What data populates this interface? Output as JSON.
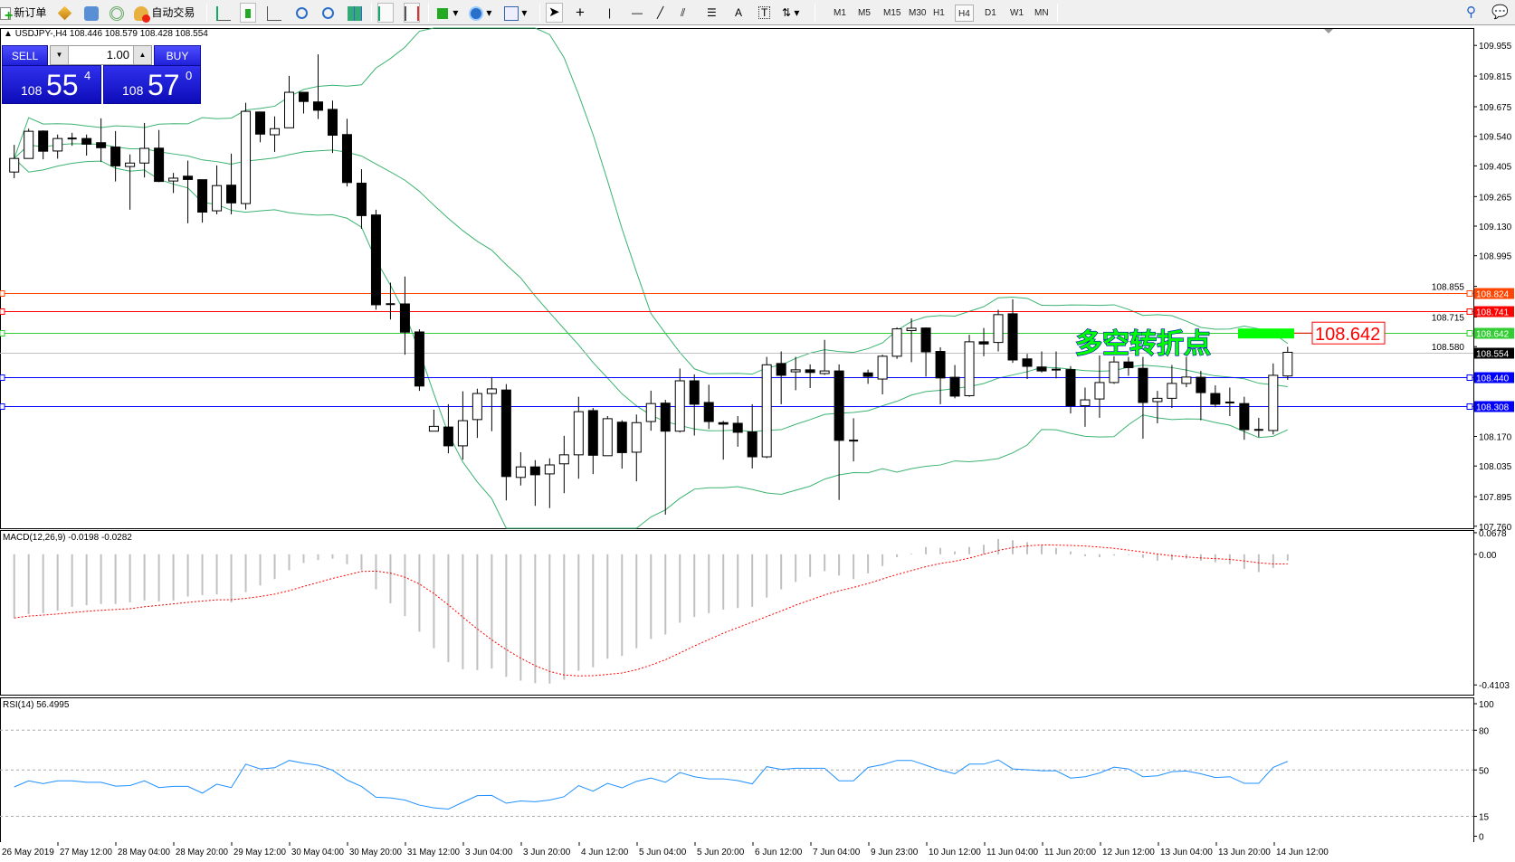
{
  "toolbar": {
    "new_order": "新订单",
    "auto_trading": "自动交易",
    "timeframes": [
      "M1",
      "M5",
      "M15",
      "M30",
      "H1",
      "H4",
      "D1",
      "W1",
      "MN"
    ],
    "active_timeframe": "H4",
    "text_tool": "A",
    "label_tool": "T"
  },
  "chart": {
    "header": "USDJPY-,H4  108.446 108.579 108.428 108.554",
    "symbol": "USDJPY-",
    "timeframe": "H4"
  },
  "trade_panel": {
    "sell_label": "SELL",
    "buy_label": "BUY",
    "lot": "1.00",
    "sell_price": {
      "prefix": "108",
      "big": "55",
      "sup": "4"
    },
    "buy_price": {
      "prefix": "108",
      "big": "57",
      "sup": "0"
    }
  },
  "annotation": {
    "text": "多空转折点",
    "price_label": "108.642",
    "text_color": "#00ff00",
    "box_color": "#ff0000"
  },
  "chart_data": [
    {
      "type": "candlestick",
      "panel": "main",
      "ylim": [
        107.76,
        109.995
      ],
      "y_ticks": [
        "109.955",
        "109.815",
        "109.675",
        "109.540",
        "109.405",
        "109.265",
        "109.130",
        "108.995",
        "108.855",
        "108.715",
        "108.580",
        "108.170",
        "108.035",
        "107.895",
        "107.760"
      ],
      "x_tick_labels": [
        "26 May 2019",
        "27 May 12:00",
        "28 May 04:00",
        "28 May 20:00",
        "29 May 12:00",
        "30 May 04:00",
        "30 May 20:00",
        "31 May 12:00",
        "3 Jun 04:00",
        "3 Jun 20:00",
        "4 Jun 12:00",
        "5 Jun 04:00",
        "5 Jun 20:00",
        "6 Jun 12:00",
        "7 Jun 04:00",
        "9 Jun 23:00",
        "10 Jun 12:00",
        "11 Jun 04:00",
        "11 Jun 20:00",
        "12 Jun 12:00",
        "13 Jun 04:00",
        "13 Jun 20:00",
        "14 Jun 12:00"
      ],
      "ohlc": [
        [
          109.377,
          109.501,
          109.349,
          109.439
        ],
        [
          109.439,
          109.575,
          109.439,
          109.563
        ],
        [
          109.564,
          109.567,
          109.435,
          109.472
        ],
        [
          109.473,
          109.548,
          109.438,
          109.53
        ],
        [
          109.53,
          109.556,
          109.497,
          109.528
        ],
        [
          109.53,
          109.548,
          109.452,
          109.504
        ],
        [
          109.511,
          109.622,
          109.423,
          109.488
        ],
        [
          109.491,
          109.564,
          109.334,
          109.405
        ],
        [
          109.402,
          109.457,
          109.205,
          109.418
        ],
        [
          109.418,
          109.601,
          109.352,
          109.485
        ],
        [
          109.486,
          109.569,
          109.331,
          109.334
        ],
        [
          109.336,
          109.373,
          109.281,
          109.349
        ],
        [
          109.358,
          109.429,
          109.143,
          109.343
        ],
        [
          109.342,
          109.342,
          109.146,
          109.194
        ],
        [
          109.2,
          109.407,
          109.184,
          109.315
        ],
        [
          109.317,
          109.461,
          109.184,
          109.236
        ],
        [
          109.233,
          109.693,
          109.206,
          109.654
        ],
        [
          109.651,
          109.651,
          109.513,
          109.55
        ],
        [
          109.547,
          109.631,
          109.469,
          109.575
        ],
        [
          109.579,
          109.816,
          109.579,
          109.741
        ],
        [
          109.741,
          109.741,
          109.644,
          109.699
        ],
        [
          109.697,
          109.914,
          109.619,
          109.659
        ],
        [
          109.663,
          109.703,
          109.464,
          109.545
        ],
        [
          109.548,
          109.62,
          109.311,
          109.329
        ],
        [
          109.326,
          109.39,
          109.118,
          109.178
        ],
        [
          109.181,
          109.205,
          108.749,
          108.771
        ],
        [
          108.774,
          108.872,
          108.704,
          108.772
        ],
        [
          108.775,
          108.9,
          108.543,
          108.646
        ],
        [
          108.647,
          108.659,
          108.378,
          108.4
        ],
        [
          108.194,
          108.292,
          108.194,
          108.216
        ],
        [
          108.213,
          108.317,
          108.093,
          108.127
        ],
        [
          108.127,
          108.376,
          108.064,
          108.242
        ],
        [
          108.247,
          108.388,
          108.163,
          108.366
        ],
        [
          108.366,
          108.441,
          108.194,
          108.387
        ],
        [
          108.382,
          108.409,
          107.878,
          107.987
        ],
        [
          107.983,
          108.098,
          107.946,
          108.031
        ],
        [
          108.031,
          108.062,
          107.853,
          107.995
        ],
        [
          107.999,
          108.07,
          107.843,
          108.04
        ],
        [
          108.045,
          108.173,
          107.911,
          108.086
        ],
        [
          108.086,
          108.351,
          107.977,
          108.283
        ],
        [
          108.288,
          108.3,
          107.998,
          108.084
        ],
        [
          108.082,
          108.263,
          108.082,
          108.251
        ],
        [
          108.235,
          108.244,
          108.023,
          108.096
        ],
        [
          108.098,
          108.27,
          107.965,
          108.233
        ],
        [
          108.238,
          108.379,
          108.196,
          108.32
        ],
        [
          108.322,
          108.337,
          107.813,
          108.194
        ],
        [
          108.194,
          108.48,
          108.188,
          108.424
        ],
        [
          108.424,
          108.453,
          108.174,
          108.317
        ],
        [
          108.325,
          108.406,
          108.204,
          108.238
        ],
        [
          108.233,
          108.241,
          108.064,
          108.226
        ],
        [
          108.23,
          108.263,
          108.123,
          108.189
        ],
        [
          108.191,
          108.317,
          108.024,
          108.077
        ],
        [
          108.077,
          108.533,
          108.071,
          108.497
        ],
        [
          108.503,
          108.558,
          108.317,
          108.449
        ],
        [
          108.465,
          108.533,
          108.381,
          108.474
        ],
        [
          108.474,
          108.499,
          108.391,
          108.462
        ],
        [
          108.457,
          108.611,
          108.451,
          108.469
        ],
        [
          108.469,
          108.499,
          107.88,
          108.152
        ],
        [
          108.151,
          108.253,
          108.056,
          108.15
        ],
        [
          108.46,
          108.475,
          108.41,
          108.444
        ],
        [
          108.432,
          108.543,
          108.362,
          108.536
        ],
        [
          108.536,
          108.668,
          108.524,
          108.661
        ],
        [
          108.653,
          108.709,
          108.509,
          108.664
        ],
        [
          108.665,
          108.668,
          108.443,
          108.556
        ],
        [
          108.558,
          108.577,
          108.317,
          108.437
        ],
        [
          108.44,
          108.496,
          108.344,
          108.354
        ],
        [
          108.356,
          108.634,
          108.351,
          108.602
        ],
        [
          108.602,
          108.665,
          108.536,
          108.592
        ],
        [
          108.599,
          108.748,
          108.558,
          108.726
        ],
        [
          108.73,
          108.796,
          108.506,
          108.519
        ],
        [
          108.524,
          108.547,
          108.432,
          108.49
        ],
        [
          108.487,
          108.558,
          108.462,
          108.469
        ],
        [
          108.475,
          108.558,
          108.435,
          108.474
        ],
        [
          108.475,
          108.491,
          108.275,
          108.31
        ],
        [
          108.31,
          108.393,
          108.214,
          108.337
        ],
        [
          108.341,
          108.54,
          108.255,
          108.416
        ],
        [
          108.416,
          108.536,
          108.41,
          108.51
        ],
        [
          108.51,
          108.533,
          108.447,
          108.484
        ],
        [
          108.481,
          108.533,
          108.16,
          108.325
        ],
        [
          108.329,
          108.378,
          108.23,
          108.344
        ],
        [
          108.344,
          108.496,
          108.3,
          108.412
        ],
        [
          108.412,
          108.533,
          108.395,
          108.441
        ],
        [
          108.44,
          108.469,
          108.244,
          108.37
        ],
        [
          108.366,
          108.403,
          108.303,
          108.317
        ],
        [
          108.325,
          108.393,
          108.263,
          108.323
        ],
        [
          108.32,
          108.351,
          108.155,
          108.201
        ],
        [
          108.2,
          108.255,
          108.167,
          108.199
        ],
        [
          108.197,
          108.503,
          108.179,
          108.449
        ],
        [
          108.446,
          108.579,
          108.428,
          108.554
        ]
      ],
      "overlay": {
        "type": "bollinger_bands",
        "color": "#3cb371"
      },
      "horizontal_lines": [
        {
          "price": 108.824,
          "label": "108.824",
          "color": "#ff4500"
        },
        {
          "price": 108.741,
          "label": "108.741",
          "color": "#ff0000"
        },
        {
          "price": 108.642,
          "label": "108.642",
          "color": "#32cd32"
        },
        {
          "price": 108.554,
          "label": "108.554",
          "color": "#c0c0c0",
          "label_bg": "#000000"
        },
        {
          "price": 108.44,
          "label": "108.440",
          "color": "#0000ff"
        },
        {
          "price": 108.308,
          "label": "108.308",
          "color": "#0000ff"
        }
      ]
    },
    {
      "type": "bar",
      "panel": "macd",
      "title": "MACD(12,26,9) -0.0198 -0.0282",
      "y_ticks": [
        "0.0678",
        "0.00",
        "-0.4103"
      ],
      "ylim": [
        -0.4103,
        0.0678
      ],
      "histogram_color": "#c0c0c0",
      "signal_color": "#ff0000",
      "macd": [
        -0.2,
        -0.188,
        -0.185,
        -0.177,
        -0.165,
        -0.16,
        -0.156,
        -0.156,
        -0.151,
        -0.145,
        -0.148,
        -0.145,
        -0.133,
        -0.128,
        -0.126,
        -0.151,
        -0.119,
        -0.098,
        -0.078,
        -0.05,
        -0.027,
        -0.018,
        -0.014,
        -0.031,
        -0.05,
        -0.11,
        -0.154,
        -0.194,
        -0.243,
        -0.295,
        -0.339,
        -0.361,
        -0.364,
        -0.359,
        -0.385,
        -0.397,
        -0.405,
        -0.406,
        -0.394,
        -0.366,
        -0.355,
        -0.328,
        -0.319,
        -0.295,
        -0.266,
        -0.252,
        -0.215,
        -0.197,
        -0.185,
        -0.174,
        -0.169,
        -0.165,
        -0.136,
        -0.11,
        -0.087,
        -0.071,
        -0.053,
        -0.067,
        -0.078,
        -0.06,
        -0.037,
        -0.009,
        0.002,
        0.023,
        0.02,
        0.009,
        0.023,
        0.03,
        0.048,
        0.044,
        0.038,
        0.029,
        0.02,
        0.009,
        -0.006,
        -0.009,
        -0.004,
        -0.002,
        -0.011,
        -0.02,
        -0.018,
        -0.014,
        -0.02,
        -0.025,
        -0.031,
        -0.046,
        -0.056,
        -0.043,
        -0.0198
      ]
    },
    {
      "type": "line",
      "panel": "rsi",
      "title": "RSI(14) 56.4995",
      "y_ticks": [
        "100",
        "80",
        "50",
        "15",
        "0"
      ],
      "levels": [
        80,
        50,
        15
      ],
      "ylim": [
        0,
        100
      ],
      "color": "#1e90ff",
      "values": [
        37.2,
        41.8,
        39.7,
        41.8,
        41.8,
        40.7,
        40.7,
        37.8,
        38.2,
        41.8,
        36.7,
        37.6,
        37.6,
        32.5,
        39.3,
        36.7,
        54.4,
        50.8,
        51.7,
        57.2,
        55.1,
        53.6,
        49.8,
        42.4,
        37.6,
        29.4,
        28.9,
        27.3,
        23.5,
        21.4,
        20.5,
        25.6,
        30.6,
        30.8,
        24.9,
        26.6,
        26.0,
        27.3,
        29.8,
        38.2,
        34.0,
        39.9,
        36.5,
        41.4,
        43.9,
        40.7,
        48.1,
        44.9,
        43.3,
        43.3,
        42.0,
        39.5,
        52.5,
        50.4,
        51.3,
        51.3,
        51.3,
        41.8,
        41.8,
        51.9,
        54.0,
        57.2,
        57.2,
        53.6,
        49.8,
        47.1,
        54.4,
        54.4,
        57.6,
        50.8,
        50.2,
        49.4,
        49.4,
        43.9,
        44.9,
        47.7,
        52.1,
        50.8,
        44.9,
        45.6,
        48.7,
        49.2,
        47.1,
        44.3,
        44.9,
        39.9,
        39.9,
        51.9,
        56.4995
      ]
    }
  ]
}
